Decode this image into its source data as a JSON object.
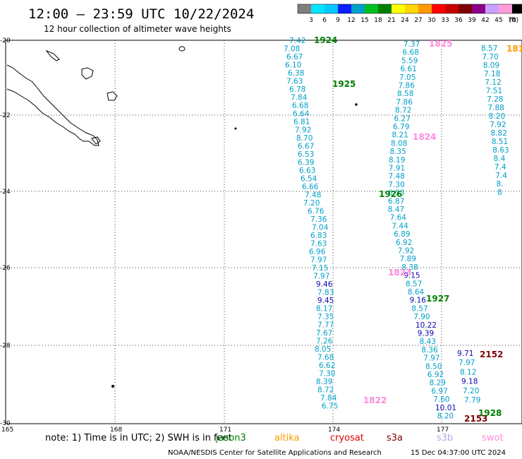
{
  "header": {
    "title": "12:00 — 23:59 UTC 10/22/2024",
    "subtitle": "12 hour collection of altimeter wave heights"
  },
  "colorbar": {
    "labels": [
      "3",
      "6",
      "9",
      "12",
      "15",
      "18",
      "21",
      "24",
      "27",
      "30",
      "33",
      "36",
      "39",
      "42",
      "45",
      "70",
      "(ft)"
    ],
    "colors": [
      "#7f7f7f",
      "#00e5ff",
      "#00c8ff",
      "#0a1eff",
      "#00a0c8",
      "#00c020",
      "#008000",
      "#ffff00",
      "#ffd700",
      "#ff9900",
      "#ff0000",
      "#c80000",
      "#800000",
      "#8b008b",
      "#c8a0ff",
      "#ff9cdc",
      "#000000"
    ]
  },
  "map": {
    "lat_labels": [
      "-20",
      "-22",
      "-24",
      "-26",
      "-28",
      "-30"
    ],
    "lon_labels": [
      "165",
      "168",
      "171",
      "174",
      "177"
    ]
  },
  "tracks": [
    {
      "name": "track-west",
      "color": "#00a0c8",
      "values": [
        "7.42",
        "7.08",
        "6.67",
        "6.10",
        "6.38",
        "7.63",
        "6.78",
        "7.84",
        "6.68",
        "6.64",
        "6.81",
        "7.92",
        "8.70",
        "6.67",
        "6.53",
        "6.39",
        "6.63",
        "6.54",
        "6.66",
        "7.48",
        "7.20",
        "6.76",
        "7.36",
        "7.04",
        "6.83",
        "7.63",
        "6.96",
        "7.97",
        "7.15",
        "7.97",
        "9.46",
        "7.83",
        "9.45",
        "8.17",
        "7.35",
        "7.77",
        "7.67",
        "7.26",
        "8.05",
        "7.68",
        "6.62",
        "7.30",
        "8.39",
        "8.72",
        "7.84",
        "6.75"
      ]
    },
    {
      "name": "track-mid",
      "color": "#00a0c8",
      "values": [
        "7.37",
        "6.68",
        "5.59",
        "6.61",
        "7.05",
        "7.86",
        "8.58",
        "7.86",
        "8.72",
        "6.27",
        "6.79",
        "8.21",
        "8.08",
        "8.35",
        "8.19",
        "7.91",
        "7.48",
        "7.30",
        "6.53",
        "6.87",
        "8.47",
        "7.64",
        "7.44",
        "6.89",
        "6.92",
        "7.92",
        "7.89",
        "8.38",
        "9.15",
        "8.57",
        "8.64",
        "9.16",
        "8.57",
        "7.90",
        "10.22",
        "9.39",
        "8.43",
        "8.36",
        "7.97",
        "8.50",
        "6.92",
        "8.29",
        "6.97",
        "7.60",
        "10.01",
        "8.20"
      ]
    },
    {
      "name": "track-east",
      "color": "#00a0c8",
      "values": [
        "8.57",
        "7.70",
        "8.09",
        "7.18",
        "7.12",
        "7.51",
        "7.28",
        "7.88",
        "8.20",
        "7.92",
        "8.82",
        "8.51",
        "8.63",
        "8.4",
        "7.4",
        "7.4",
        "8.",
        "8"
      ]
    },
    {
      "name": "track-se",
      "color": "#00a0c8",
      "values": [
        "9.71",
        "7.97",
        "8.12",
        "9.18",
        "7.20",
        "7.79"
      ]
    }
  ],
  "time_labels": [
    {
      "text": "1924",
      "color": "#008000"
    },
    {
      "text": "1925",
      "color": "#008000"
    },
    {
      "text": "1926",
      "color": "#008000"
    },
    {
      "text": "1927",
      "color": "#008000"
    },
    {
      "text": "1928",
      "color": "#008000"
    },
    {
      "text": "1825",
      "color": "#ff88dd"
    },
    {
      "text": "1824",
      "color": "#ff88dd"
    },
    {
      "text": "1823",
      "color": "#ff88dd"
    },
    {
      "text": "1822",
      "color": "#ff88dd"
    },
    {
      "text": "181",
      "color": "#ff9900"
    },
    {
      "text": "2152",
      "color": "#800000"
    },
    {
      "text": "2153",
      "color": "#800000"
    }
  ],
  "footer": {
    "note": "note: 1) Time is in UTC; 2) SWH is in feet",
    "jason": "jason3",
    "altika": "altika",
    "cryosat": "cryosat",
    "s3a": "s3a",
    "s3b": "s3b",
    "swot": "swot",
    "credit": "NOAA/NESDIS Center for Satellite Applications and Research",
    "timestamp": "15 Dec 04:37:00 UTC 2024"
  }
}
